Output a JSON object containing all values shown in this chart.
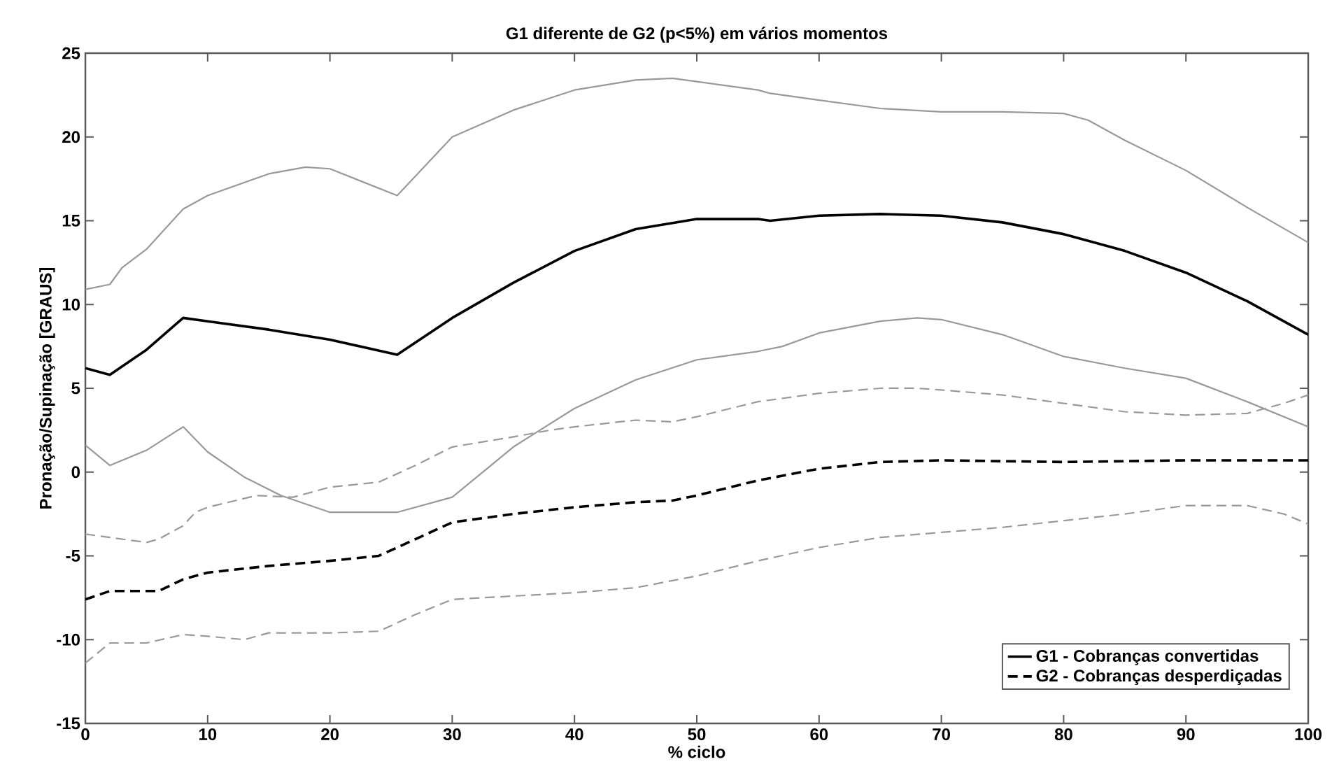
{
  "chart_data": {
    "type": "line",
    "title": "G1 diferente de G2 (p<5%) em vários momentos",
    "xlabel": "% ciclo",
    "ylabel": "Pronação/Supinação [GRAUS]",
    "xlim": [
      0,
      100
    ],
    "xticks": [
      0,
      10,
      20,
      30,
      40,
      50,
      60,
      70,
      80,
      90,
      100
    ],
    "ylim": [
      -15,
      25
    ],
    "yticks": [
      -15,
      -10,
      -5,
      0,
      5,
      10,
      15,
      20,
      25
    ],
    "grid": false,
    "legend": "bottom right",
    "marker": "none",
    "series": [
      {
        "name": "G1 - Cobranças convertidas",
        "color": "#000000",
        "line_style": "solid",
        "x": [
          0,
          2,
          5,
          8,
          10,
          15,
          20,
          25.5,
          30,
          35,
          40,
          45,
          50,
          55,
          56,
          60,
          65,
          70,
          75,
          80,
          85,
          90,
          95,
          100
        ],
        "values": [
          6.2,
          5.8,
          7.3,
          9.2,
          9.0,
          8.5,
          7.9,
          7.0,
          9.2,
          11.3,
          13.2,
          14.5,
          15.1,
          15.1,
          15.0,
          15.3,
          15.4,
          15.3,
          14.9,
          14.2,
          13.2,
          11.9,
          10.2,
          8.2
        ]
      },
      {
        "color": "#999999",
        "line_style": "solid",
        "x": [
          0,
          2,
          3,
          5,
          8,
          10,
          15,
          18,
          20,
          25.5,
          30,
          35,
          40,
          45,
          48,
          50,
          55,
          56,
          60,
          65,
          70,
          75,
          80,
          82,
          85,
          90,
          95,
          100
        ],
        "values": [
          10.9,
          11.2,
          12.2,
          13.3,
          15.7,
          16.5,
          17.8,
          18.2,
          18.1,
          16.5,
          20.0,
          21.6,
          22.8,
          23.4,
          23.5,
          23.3,
          22.8,
          22.6,
          22.2,
          21.7,
          21.5,
          21.5,
          21.4,
          21.0,
          19.8,
          18.0,
          15.8,
          13.7
        ]
      },
      {
        "color": "#999999",
        "line_style": "solid",
        "x": [
          0,
          2,
          5,
          8,
          10,
          13,
          16,
          20,
          25.5,
          30,
          33,
          35,
          40,
          45,
          50,
          55,
          57,
          60,
          65,
          68,
          70,
          75,
          80,
          85,
          90,
          95,
          100
        ],
        "values": [
          1.6,
          0.4,
          1.3,
          2.7,
          1.2,
          -0.3,
          -1.4,
          -2.4,
          -2.4,
          -1.5,
          0.3,
          1.5,
          3.8,
          5.5,
          6.7,
          7.2,
          7.5,
          8.3,
          9.0,
          9.2,
          9.1,
          8.2,
          6.9,
          6.2,
          5.6,
          4.2,
          2.7
        ]
      },
      {
        "name": "G2 - Cobranças desperdiçadas",
        "color": "#000000",
        "line_style": "dashed",
        "x": [
          0,
          2,
          6,
          8,
          10,
          15,
          20,
          24,
          27,
          30,
          35,
          40,
          45,
          48,
          50,
          55,
          60,
          65,
          70,
          80,
          90,
          100
        ],
        "values": [
          -7.6,
          -7.1,
          -7.1,
          -6.4,
          -6.0,
          -5.6,
          -5.3,
          -5.0,
          -4.0,
          -3.0,
          -2.5,
          -2.1,
          -1.8,
          -1.7,
          -1.4,
          -0.5,
          0.2,
          0.6,
          0.7,
          0.6,
          0.7,
          0.7
        ]
      },
      {
        "color": "#999999",
        "line_style": "dashed",
        "x": [
          0,
          2,
          5,
          6,
          8,
          9,
          10,
          14,
          17,
          20,
          24,
          27,
          30,
          35,
          38,
          40,
          45,
          48,
          50,
          55,
          60,
          65,
          68,
          70,
          75,
          80,
          85,
          90,
          95,
          98,
          100
        ],
        "values": [
          -3.7,
          -3.9,
          -4.2,
          -4.0,
          -3.2,
          -2.4,
          -2.1,
          -1.4,
          -1.5,
          -0.9,
          -0.6,
          0.4,
          1.5,
          2.1,
          2.5,
          2.7,
          3.1,
          3.0,
          3.3,
          4.2,
          4.7,
          5.0,
          5.0,
          4.9,
          4.6,
          4.1,
          3.6,
          3.4,
          3.5,
          4.1,
          4.6
        ]
      },
      {
        "color": "#999999",
        "line_style": "dashed",
        "x": [
          0,
          2,
          5,
          8,
          10,
          13,
          15,
          20,
          24,
          27,
          30,
          35,
          40,
          45,
          50,
          55,
          60,
          65,
          70,
          75,
          80,
          85,
          90,
          95,
          98,
          100
        ],
        "values": [
          -11.4,
          -10.2,
          -10.2,
          -9.7,
          -9.8,
          -10.0,
          -9.6,
          -9.6,
          -9.5,
          -8.5,
          -7.6,
          -7.4,
          -7.2,
          -6.9,
          -6.2,
          -5.3,
          -4.5,
          -3.9,
          -3.6,
          -3.3,
          -2.9,
          -2.5,
          -2.0,
          -2.0,
          -2.5,
          -3.1
        ]
      }
    ]
  }
}
